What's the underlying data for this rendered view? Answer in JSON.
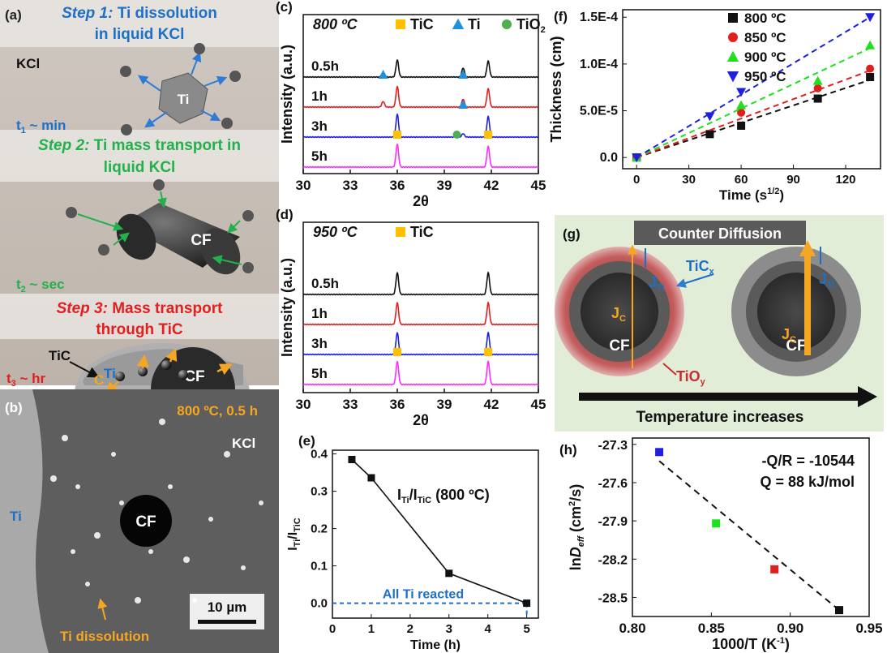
{
  "panel_a": {
    "label": "(a)",
    "step1": {
      "head": "Step 1:",
      "rest1": " Ti dissolution",
      "rest2": "in liquid KCl"
    },
    "kcl": "KCl",
    "ti": "Ti",
    "t1": "t",
    "t1_sub": "1",
    "t1_rest": " ~ min",
    "step2": {
      "head": "Step 2:",
      "rest1": " Ti mass transport in",
      "rest2": "liquid KCl"
    },
    "cf": "CF",
    "t2": "t",
    "t2_sub": "2",
    "t2_rest": " ~ sec",
    "step3": {
      "head": "Step 3:",
      "rest1": " Mass transport",
      "rest2": "through TiC"
    },
    "tic": "TiC",
    "ti2": "Ti",
    "c": "C",
    "cf2": "CF",
    "t3": "t",
    "t3_sub": "3",
    "t3_rest": " ~ hr"
  },
  "panel_b": {
    "label": "(b)",
    "cond": "800 ºC, 0.5 h",
    "kcl": "KCl",
    "ti": "Ti",
    "cf": "CF",
    "scale": "10 µm",
    "dissolution": "Ti dissolution"
  },
  "panel_g": {
    "label": "(g)",
    "title": "Counter Diffusion",
    "ticx": "TiC",
    "ticx_sub": "x",
    "tioy": "TiO",
    "tioy_sub": "y",
    "jc": "J",
    "jc_sub": "C",
    "jti": "J",
    "jti_sub": "Ti",
    "cf": "CF",
    "arrow_label": "Temperature increases"
  },
  "colors": {
    "black": "#111111",
    "red": "#e0201f",
    "blue": "#1f1fdc",
    "magenta": "#ff2cff",
    "green": "#1ee01e",
    "orange": "#ffc000",
    "ti_blue": "#1e90dc",
    "tio2_green": "#4caf50"
  },
  "chart_data": [
    {
      "id": "c",
      "label": "(c)",
      "type": "line",
      "title": "800 ºC",
      "xlabel": "2θ",
      "ylabel": "Intensity (a.u.)",
      "xlim": [
        30,
        45
      ],
      "xticks": [
        30,
        33,
        36,
        39,
        42,
        45
      ],
      "legend": [
        {
          "name": "TiC",
          "marker": "square",
          "color": "#ffc000"
        },
        {
          "name": "Ti",
          "marker": "triangle",
          "color": "#1e90dc"
        },
        {
          "name": "TiO",
          "sub": "2",
          "marker": "circle",
          "color": "#4caf50"
        }
      ],
      "series": [
        {
          "name": "5h",
          "color": "#ff2cff",
          "peaks": [
            [
              36.0,
              1.0
            ],
            [
              41.8,
              0.9
            ]
          ]
        },
        {
          "name": "3h",
          "color": "#1f1fdc",
          "peaks": [
            [
              36.0,
              1.0
            ],
            [
              40.2,
              0.15
            ],
            [
              41.8,
              0.9
            ]
          ]
        },
        {
          "name": "1h",
          "color": "#e0201f",
          "peaks": [
            [
              35.1,
              0.25
            ],
            [
              36.0,
              0.9
            ],
            [
              40.2,
              0.35
            ],
            [
              41.8,
              0.8
            ]
          ]
        },
        {
          "name": "0.5h",
          "color": "#111111",
          "peaks": [
            [
              35.1,
              0.2
            ],
            [
              36.0,
              0.75
            ],
            [
              40.2,
              0.4
            ],
            [
              41.8,
              0.7
            ]
          ]
        }
      ],
      "markers": [
        {
          "x": 36.0,
          "series": "5h",
          "type": "TiC"
        },
        {
          "x": 41.8,
          "series": "5h",
          "type": "TiC"
        },
        {
          "x": 39.8,
          "series": "5h",
          "type": "TiO2"
        },
        {
          "x": 40.2,
          "series": "3h",
          "type": "Ti"
        },
        {
          "x": 35.1,
          "series": "1h",
          "type": "Ti"
        },
        {
          "x": 40.2,
          "series": "1h",
          "type": "Ti"
        }
      ]
    },
    {
      "id": "d",
      "label": "(d)",
      "type": "line",
      "title": "950 ºC",
      "xlabel": "2θ",
      "ylabel": "Intensity (a.u.)",
      "xlim": [
        30,
        45
      ],
      "xticks": [
        30,
        33,
        36,
        39,
        42,
        45
      ],
      "legend": [
        {
          "name": "TiC",
          "marker": "square",
          "color": "#ffc000"
        }
      ],
      "series": [
        {
          "name": "5h",
          "color": "#ff2cff",
          "peaks": [
            [
              36.0,
              1.0
            ],
            [
              41.8,
              1.0
            ]
          ]
        },
        {
          "name": "3h",
          "color": "#1f1fdc",
          "peaks": [
            [
              36.0,
              0.95
            ],
            [
              41.8,
              0.95
            ]
          ]
        },
        {
          "name": "1h",
          "color": "#e0201f",
          "peaks": [
            [
              36.0,
              0.95
            ],
            [
              41.8,
              0.95
            ]
          ]
        },
        {
          "name": "0.5h",
          "color": "#111111",
          "peaks": [
            [
              36.0,
              0.95
            ],
            [
              41.8,
              0.95
            ]
          ]
        }
      ],
      "markers": [
        {
          "x": 36.0,
          "series": "5h",
          "type": "TiC"
        },
        {
          "x": 41.8,
          "series": "5h",
          "type": "TiC"
        }
      ]
    },
    {
      "id": "e",
      "label": "(e)",
      "type": "line",
      "xlabel": "Time (h)",
      "ylabel": "I",
      "ylabel_parts": [
        "I",
        "Ti",
        "/I",
        "TiC"
      ],
      "xlim": [
        0,
        5.3
      ],
      "ylim": [
        -0.04,
        0.41
      ],
      "xticks": [
        0,
        1,
        2,
        3,
        4,
        5
      ],
      "yticks": [
        "0.0",
        "0.1",
        "0.2",
        "0.3",
        "0.4"
      ],
      "annotation": {
        "parts": [
          "I",
          "Ti",
          "/I",
          "TiC",
          " (800 ºC)"
        ]
      },
      "note": "All Ti reacted",
      "x": [
        0.5,
        1,
        3,
        5
      ],
      "y": [
        0.385,
        0.336,
        0.08,
        0.0
      ]
    },
    {
      "id": "f",
      "label": "(f)",
      "type": "scatter",
      "xlabel": "Time (s",
      "xlabel_sup": "1/2",
      "xlabel_end": ")",
      "ylabel": "Thickness (cm)",
      "xlim": [
        -8,
        140
      ],
      "ylim": [
        -1.2e-05,
        0.000158
      ],
      "xticks": [
        0,
        30,
        60,
        90,
        120
      ],
      "yticks": [
        [
          "0.0",
          0
        ],
        [
          "5.0E-5",
          5e-05
        ],
        [
          "1.0E-4",
          0.0001
        ],
        [
          "1.5E-4",
          0.00015
        ]
      ],
      "series": [
        {
          "name": "800 ºC",
          "marker": "square",
          "color": "#111111",
          "x": [
            0,
            42,
            60,
            104,
            134
          ],
          "y": [
            0.0,
            2.5e-05,
            3.4e-05,
            6.3e-05,
            8.6e-05
          ],
          "fit": [
            [
              0,
              0.0
            ],
            [
              134,
              8.3e-05
            ]
          ]
        },
        {
          "name": "850 ºC",
          "marker": "circle",
          "color": "#e0201f",
          "x": [
            0,
            60,
            104,
            134
          ],
          "y": [
            0.0,
            4.8e-05,
            7.4e-05,
            9.5e-05
          ],
          "fit": [
            [
              0,
              0.0
            ],
            [
              134,
              9.3e-05
            ]
          ]
        },
        {
          "name": "900 ºC",
          "marker": "triangle",
          "color": "#1ee01e",
          "x": [
            0,
            60,
            104,
            134
          ],
          "y": [
            0.0,
            5.6e-05,
            8.2e-05,
            0.00012
          ],
          "fit": [
            [
              0,
              0.0
            ],
            [
              134,
              0.000117
            ]
          ]
        },
        {
          "name": "950 ºC",
          "marker": "triangle-down",
          "color": "#1f1fdc",
          "x": [
            0,
            42,
            60,
            134
          ],
          "y": [
            0.0,
            4.4e-05,
            7e-05,
            0.00015
          ],
          "fit": [
            [
              0,
              0.0
            ],
            [
              134,
              0.00015
            ]
          ]
        }
      ]
    },
    {
      "id": "h",
      "label": "(h)",
      "type": "scatter",
      "xlabel": "1000/T (K",
      "xlabel_sup": "-1",
      "xlabel_end": ")",
      "ylabel_parts": [
        "ln",
        "D",
        "eff",
        " (cm",
        "2",
        "/s)"
      ],
      "xlim": [
        0.8,
        0.95
      ],
      "ylim": [
        -28.65,
        -27.25
      ],
      "xticks": [
        "0.80",
        "0.85",
        "0.90",
        "0.95"
      ],
      "yticks": [
        "-27.3",
        "-27.6",
        "-27.9",
        "-28.2",
        "-28.5"
      ],
      "annotations": [
        "-Q/R = -10544",
        "Q = 88 kJ/mol"
      ],
      "points": [
        {
          "x": 0.817,
          "y": -27.36,
          "color": "#1f1fdc"
        },
        {
          "x": 0.853,
          "y": -27.92,
          "color": "#1ee01e"
        },
        {
          "x": 0.89,
          "y": -28.28,
          "color": "#e0201f"
        },
        {
          "x": 0.931,
          "y": -28.6,
          "color": "#111111"
        }
      ],
      "fit": [
        [
          0.817,
          -27.43
        ],
        [
          0.931,
          -28.6
        ]
      ]
    }
  ]
}
